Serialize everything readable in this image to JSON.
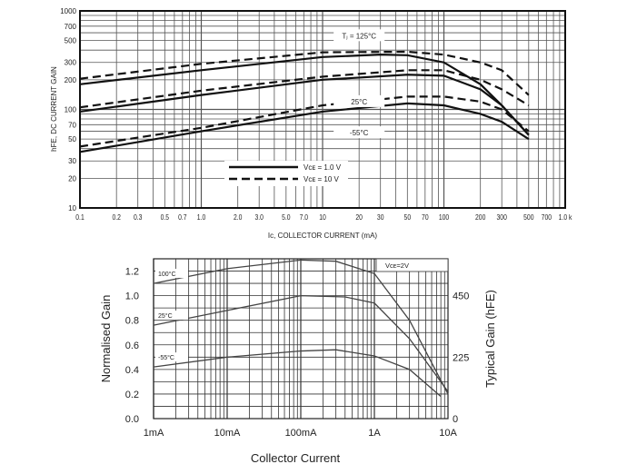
{
  "chart_data": [
    {
      "type": "line",
      "title": "",
      "xlabel": "Iᴄ, COLLECTOR CURRENT (mA)",
      "ylabel": "hFE, DC CURRENT GAIN",
      "xscale": "log",
      "yscale": "log",
      "xlim": [
        0.1,
        1000
      ],
      "ylim": [
        10,
        1000
      ],
      "grid": true,
      "xticks": [
        {
          "v": 0.1,
          "l": "0.1"
        },
        {
          "v": 0.2,
          "l": "0.2"
        },
        {
          "v": 0.3,
          "l": "0.3"
        },
        {
          "v": 0.5,
          "l": "0.5"
        },
        {
          "v": 0.7,
          "l": "0.7"
        },
        {
          "v": 1,
          "l": "1.0"
        },
        {
          "v": 2,
          "l": "2.0"
        },
        {
          "v": 3,
          "l": "3.0"
        },
        {
          "v": 5,
          "l": "5.0"
        },
        {
          "v": 7,
          "l": "7.0"
        },
        {
          "v": 10,
          "l": "10"
        },
        {
          "v": 20,
          "l": "20"
        },
        {
          "v": 30,
          "l": "30"
        },
        {
          "v": 50,
          "l": "50"
        },
        {
          "v": 70,
          "l": "70"
        },
        {
          "v": 100,
          "l": "100"
        },
        {
          "v": 200,
          "l": "200"
        },
        {
          "v": 300,
          "l": "300"
        },
        {
          "v": 500,
          "l": "500"
        },
        {
          "v": 700,
          "l": "700"
        },
        {
          "v": 1000,
          "l": "1.0 k"
        }
      ],
      "yticks": [
        {
          "v": 10,
          "l": "10"
        },
        {
          "v": 20,
          "l": "20"
        },
        {
          "v": 30,
          "l": "30"
        },
        {
          "v": 50,
          "l": "50"
        },
        {
          "v": 70,
          "l": "70"
        },
        {
          "v": 100,
          "l": "100"
        },
        {
          "v": 200,
          "l": "200"
        },
        {
          "v": 300,
          "l": "300"
        },
        {
          "v": 500,
          "l": "500"
        },
        {
          "v": 700,
          "l": "700"
        },
        {
          "v": 1000,
          "l": "1000"
        }
      ],
      "annotations": [
        {
          "text": "Tⱼ = 125°C",
          "x": 20,
          "y": 560
        },
        {
          "text": "25°C",
          "x": 20,
          "y": 120
        },
        {
          "text": "-55°C",
          "x": 20,
          "y": 58
        }
      ],
      "legend": {
        "placement": "bottom-center",
        "entries": [
          {
            "name": "Vᴄᴇ = 1.0 V",
            "style": "solid"
          },
          {
            "name": "Vᴄᴇ = 10 V",
            "style": "dashed"
          }
        ]
      },
      "series": [
        {
          "name": "125°C, VCE=1.0V",
          "style": "solid",
          "points": [
            [
              0.1,
              180
            ],
            [
              1,
              250
            ],
            [
              10,
              340
            ],
            [
              30,
              360
            ],
            [
              50,
              355
            ],
            [
              100,
              300
            ],
            [
              200,
              180
            ],
            [
              300,
              110
            ],
            [
              500,
              55
            ]
          ]
        },
        {
          "name": "125°C, VCE=10V",
          "style": "dashed",
          "points": [
            [
              0.1,
              205
            ],
            [
              1,
              290
            ],
            [
              10,
              380
            ],
            [
              50,
              385
            ],
            [
              100,
              360
            ],
            [
              200,
              300
            ],
            [
              300,
              250
            ],
            [
              500,
              140
            ]
          ]
        },
        {
          "name": "25°C, VCE=1.0V",
          "style": "solid",
          "points": [
            [
              0.1,
              95
            ],
            [
              1,
              140
            ],
            [
              10,
              200
            ],
            [
              50,
              225
            ],
            [
              100,
              220
            ],
            [
              200,
              160
            ],
            [
              300,
              110
            ],
            [
              500,
              55
            ]
          ]
        },
        {
          "name": "25°C, VCE=10V",
          "style": "dashed",
          "points": [
            [
              0.1,
              105
            ],
            [
              1,
              155
            ],
            [
              10,
              215
            ],
            [
              50,
              250
            ],
            [
              100,
              250
            ],
            [
              200,
              200
            ],
            [
              300,
              160
            ],
            [
              500,
              110
            ]
          ]
        },
        {
          "name": "-55°C, VCE=1.0V",
          "style": "solid",
          "points": [
            [
              0.1,
              37
            ],
            [
              1,
              60
            ],
            [
              10,
              95
            ],
            [
              50,
              115
            ],
            [
              100,
              110
            ],
            [
              200,
              90
            ],
            [
              300,
              75
            ],
            [
              500,
              50
            ]
          ]
        },
        {
          "name": "-55°C, VCE=10V",
          "style": "dashed",
          "points": [
            [
              0.1,
              42
            ],
            [
              1,
              65
            ],
            [
              10,
              110
            ],
            [
              50,
              135
            ],
            [
              100,
              135
            ],
            [
              200,
              120
            ],
            [
              300,
              100
            ],
            [
              500,
              60
            ]
          ]
        }
      ]
    },
    {
      "type": "line",
      "title": "",
      "xlabel": "Collector Current",
      "ylabel": "Normalised Gain",
      "y2label": "Typical Gain  (hFE)",
      "xscale": "log",
      "xlim": [
        1,
        10000
      ],
      "ylim": [
        0,
        1.3
      ],
      "grid": true,
      "xticks": [
        {
          "v": 1,
          "l": "1mA"
        },
        {
          "v": 10,
          "l": "10mA"
        },
        {
          "v": 100,
          "l": "100mA"
        },
        {
          "v": 1000,
          "l": "1A"
        },
        {
          "v": 10000,
          "l": "10A"
        }
      ],
      "yticks": [
        {
          "v": 0,
          "l": "0.0"
        },
        {
          "v": 0.2,
          "l": "0.2"
        },
        {
          "v": 0.4,
          "l": "0.4"
        },
        {
          "v": 0.6,
          "l": "0.6"
        },
        {
          "v": 0.8,
          "l": "0.8"
        },
        {
          "v": 1.0,
          "l": "1.0"
        },
        {
          "v": 1.2,
          "l": "1.2"
        }
      ],
      "y2ticks": [
        {
          "v": 0,
          "l": "0"
        },
        {
          "v": 0.5,
          "l": "225"
        },
        {
          "v": 1.0,
          "l": "450"
        }
      ],
      "legend": {
        "placement": "top-right",
        "text": "Vᴄᴇ=2V"
      },
      "series": [
        {
          "name": "100°C",
          "points": [
            [
              1,
              1.1
            ],
            [
              10,
              1.22
            ],
            [
              100,
              1.29
            ],
            [
              300,
              1.28
            ],
            [
              1000,
              1.18
            ],
            [
              3000,
              0.8
            ],
            [
              10000,
              0.2
            ]
          ]
        },
        {
          "name": "25°C",
          "points": [
            [
              1,
              0.76
            ],
            [
              10,
              0.88
            ],
            [
              100,
              1.0
            ],
            [
              400,
              0.99
            ],
            [
              1000,
              0.94
            ],
            [
              3000,
              0.65
            ],
            [
              10000,
              0.22
            ]
          ]
        },
        {
          "name": "-55°C",
          "points": [
            [
              1,
              0.42
            ],
            [
              10,
              0.5
            ],
            [
              100,
              0.55
            ],
            [
              300,
              0.56
            ],
            [
              1000,
              0.51
            ],
            [
              3000,
              0.4
            ],
            [
              8000,
              0.18
            ]
          ]
        }
      ]
    }
  ]
}
